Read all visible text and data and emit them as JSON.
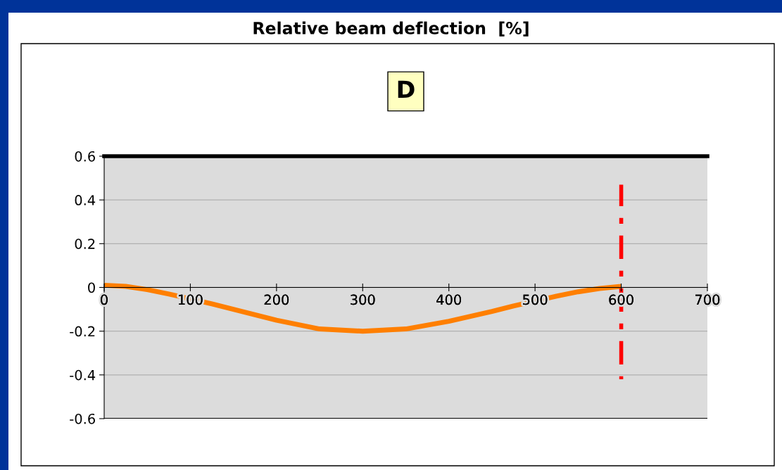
{
  "chart_data": {
    "type": "line",
    "title": "Relative beam deflection  [%]",
    "annotations": [
      "D"
    ],
    "x": [
      0,
      25,
      50,
      75,
      125,
      150,
      200,
      250,
      300,
      350,
      400,
      450,
      475,
      525,
      550,
      575,
      600
    ],
    "series": [
      {
        "color": "#ff7f00",
        "values": [
          0.01,
          0.005,
          -0.01,
          -0.03,
          -0.075,
          -0.1,
          -0.15,
          -0.19,
          -0.2,
          -0.19,
          -0.155,
          -0.11,
          -0.085,
          -0.04,
          -0.02,
          -0.005,
          0.005
        ]
      },
      {
        "color": "#ff0000",
        "x": [
          600,
          600
        ],
        "values": [
          0.47,
          -0.42
        ],
        "line_style": "dashdot"
      }
    ],
    "xlim": [
      0,
      700
    ],
    "xticks": [
      0,
      100,
      200,
      300,
      400,
      500,
      600,
      700
    ],
    "ylim": [
      -0.6,
      0.6
    ],
    "yticks": [
      -0.6,
      -0.4,
      -0.2,
      0,
      0.2,
      0.4,
      0.6
    ],
    "grid": "y",
    "legend": false,
    "marker": "none"
  }
}
